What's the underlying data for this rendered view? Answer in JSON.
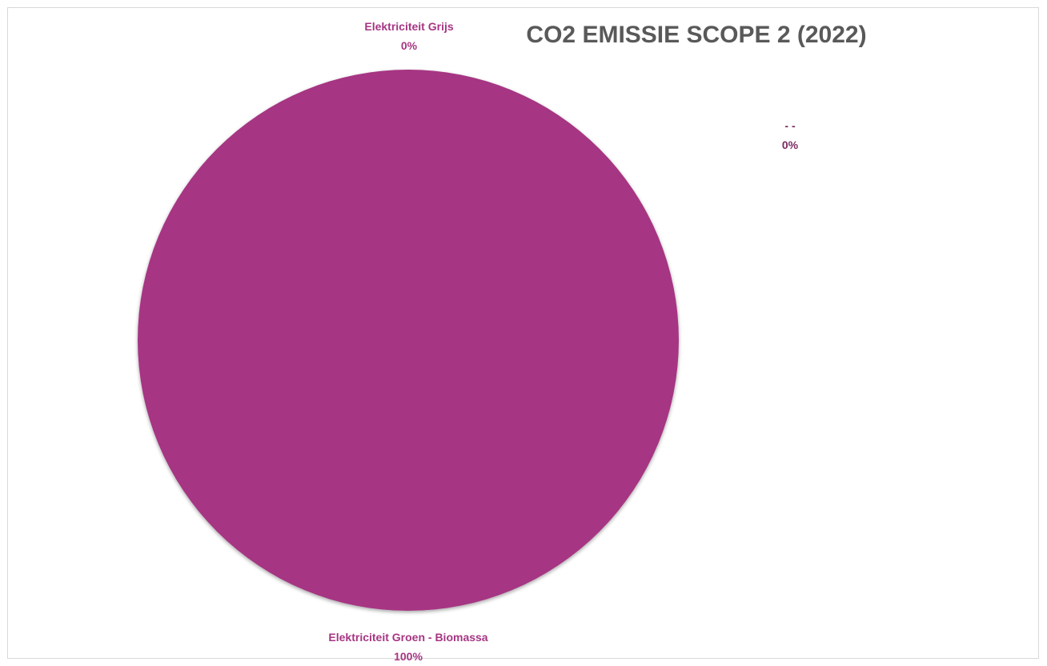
{
  "chart_data": {
    "type": "pie",
    "title": "CO2 EMISSIE SCOPE 2 (2022)",
    "slices": [
      {
        "label": "Elektriciteit Groen - Biomassa",
        "value": 100,
        "value_label": "100%",
        "color": "#a63683"
      },
      {
        "label": "Elektriciteit Grijs",
        "value": 0,
        "value_label": "0%",
        "color": "#a63683"
      },
      {
        "label": "- -",
        "value": 0,
        "value_label": "0%",
        "color": "#7a2a63"
      }
    ],
    "legend": "none",
    "data_labels": "category name and percentage"
  }
}
